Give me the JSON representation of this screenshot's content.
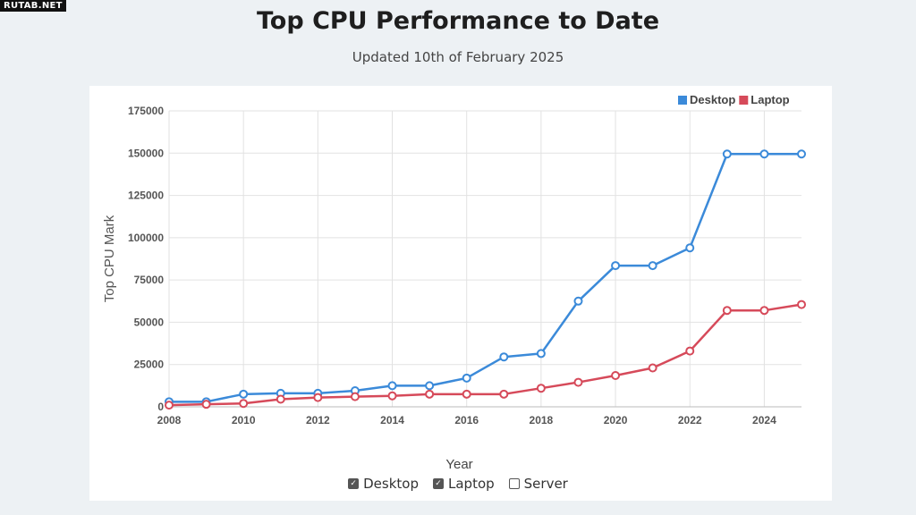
{
  "watermark": "RUTAB.NET",
  "page": {
    "title": "Top CPU Performance to Date",
    "subtitle": "Updated 10th of February 2025"
  },
  "controls": [
    {
      "label": "Desktop",
      "checked": true
    },
    {
      "label": "Laptop",
      "checked": true
    },
    {
      "label": "Server",
      "checked": false
    }
  ],
  "chart_data": {
    "type": "line",
    "title": "Top CPU Performance to Date",
    "subtitle": "Updated 10th of February 2025",
    "xlabel": "Year",
    "ylabel": "Top CPU Mark",
    "xlim": [
      2008,
      2025
    ],
    "ylim": [
      0,
      175000
    ],
    "xticks": [
      "2008",
      "2010",
      "2012",
      "2014",
      "2016",
      "2018",
      "2020",
      "2022",
      "2024"
    ],
    "yticks": [
      "0",
      "25000",
      "50000",
      "75000",
      "100000",
      "125000",
      "150000",
      "175000"
    ],
    "x": [
      2008,
      2009,
      2010,
      2011,
      2012,
      2013,
      2014,
      2015,
      2016,
      2017,
      2018,
      2019,
      2020,
      2021,
      2022,
      2023,
      2024,
      2025
    ],
    "grid": true,
    "legend_position": "top-right",
    "series": [
      {
        "name": "Desktop",
        "color": "#3b8ad9",
        "values": [
          3000,
          3000,
          7500,
          8000,
          8000,
          9500,
          12500,
          12500,
          17000,
          29500,
          31500,
          62500,
          83500,
          83500,
          94000,
          149500,
          149500,
          149500
        ]
      },
      {
        "name": "Laptop",
        "color": "#d64a5a",
        "values": [
          1000,
          1500,
          2000,
          4500,
          5500,
          6000,
          6500,
          7500,
          7500,
          7500,
          11000,
          14500,
          18500,
          23000,
          33000,
          57000,
          57000,
          60500
        ]
      }
    ]
  }
}
